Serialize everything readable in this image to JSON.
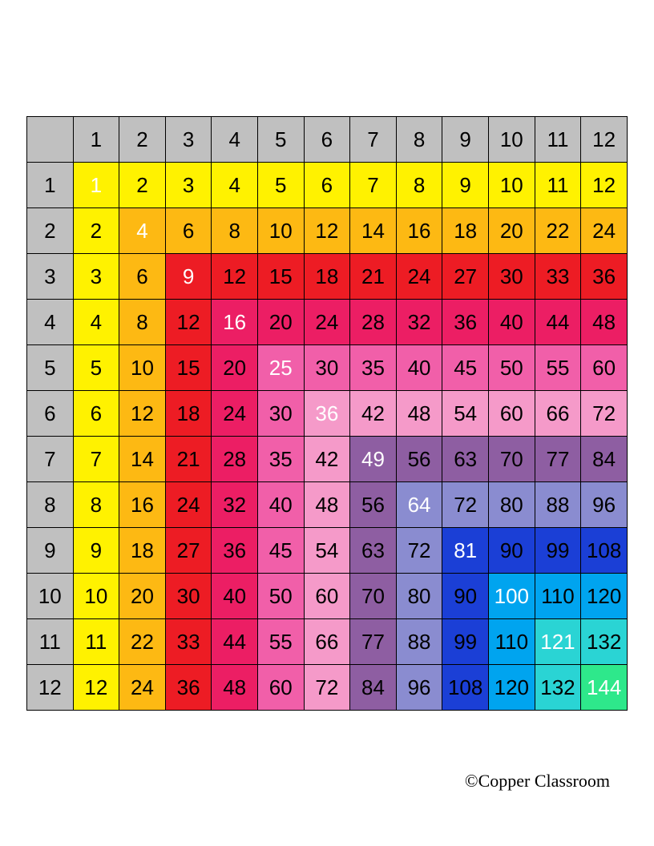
{
  "multiplication_table": {
    "type": "table",
    "size": 12,
    "header_bg": "#c0c0c0",
    "border_color": "#000000",
    "cell_fontsize": 26,
    "text_color_default": "#000000",
    "text_color_diagonal": "#ffffff",
    "diagonal_colors": {
      "1": "#fff200",
      "2": "#fdb913",
      "3": "#ed1c24",
      "4": "#ec1e64",
      "5": "#f15fa9",
      "6": "#f59ac9",
      "7": "#8e5ea2",
      "8": "#8a8cd0",
      "9": "#1b3fd6",
      "10": "#00a4ef",
      "11": "#2ad4d4",
      "12": "#2ee88b"
    },
    "headers": [
      1,
      2,
      3,
      4,
      5,
      6,
      7,
      8,
      9,
      10,
      11,
      12
    ]
  },
  "footer": {
    "text": "©Copper Classroom"
  }
}
